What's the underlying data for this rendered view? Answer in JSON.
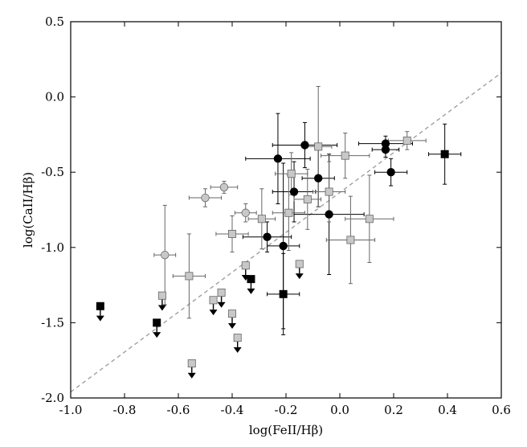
{
  "chart_data": {
    "type": "scatter",
    "title": "",
    "xlabel": "log(FeII/Hβ)",
    "ylabel": "log(CaII/Hβ)",
    "xlim": [
      -1.0,
      0.6
    ],
    "ylim": [
      -2.0,
      0.5
    ],
    "x_ticks": [
      -1.0,
      -0.8,
      -0.6,
      -0.4,
      -0.2,
      0.0,
      0.2,
      0.4,
      0.6
    ],
    "x_tick_labels": [
      "-1.0",
      "-0.8",
      "-0.6",
      "-0.4",
      "-0.2",
      "0.0",
      "0.2",
      "0.4",
      "0.6"
    ],
    "y_ticks": [
      -2.0,
      -1.5,
      -1.0,
      -0.5,
      0.0,
      0.5
    ],
    "y_tick_labels": [
      "-2.0",
      "-1.5",
      "-1.0",
      "-0.5",
      "0.0",
      "0.5"
    ],
    "grid": false,
    "legend": "none",
    "reference_line": {
      "style": "dashed",
      "color": "#a0a0a0",
      "x": [
        -1.0,
        0.6
      ],
      "y": [
        -1.96,
        0.16
      ]
    },
    "series": [
      {
        "marker": "circle",
        "color": "#000000",
        "edge": "#000000",
        "points": [
          {
            "x": -0.23,
            "y": -0.41,
            "xerr": 0.12,
            "yerr": 0.3
          },
          {
            "x": -0.13,
            "y": -0.32,
            "xerr": 0.12,
            "yerr": 0.15
          },
          {
            "x": -0.08,
            "y": -0.54,
            "xerr": 0.06,
            "yerr": 0.19
          },
          {
            "x": -0.17,
            "y": -0.63,
            "xerr": 0.08,
            "yerr": 0.2
          },
          {
            "x": 0.17,
            "y": -0.31,
            "xerr": 0.1,
            "yerr": 0.05
          },
          {
            "x": 0.17,
            "y": -0.35,
            "xerr": 0.05,
            "yerr": 0.05
          },
          {
            "x": 0.19,
            "y": -0.5,
            "xerr": 0.06,
            "yerr": 0.09
          },
          {
            "x": -0.27,
            "y": -0.93,
            "xerr": 0.09,
            "yerr": 0.1
          },
          {
            "x": -0.21,
            "y": -0.99,
            "xerr": 0.06,
            "yerr": 0.55
          },
          {
            "x": -0.04,
            "y": -0.78,
            "xerr": 0.13,
            "yerr": 0.4
          }
        ]
      },
      {
        "marker": "circle",
        "color": "#c8c8c8",
        "edge": "#666666",
        "points": [
          {
            "x": -0.5,
            "y": -0.67,
            "xerr": 0.06,
            "yerr": 0.06
          },
          {
            "x": -0.43,
            "y": -0.6,
            "xerr": 0.05,
            "yerr": 0.04
          },
          {
            "x": -0.35,
            "y": -0.77,
            "xerr": 0.04,
            "yerr": 0.06
          },
          {
            "x": -0.65,
            "y": -1.05,
            "xerr": 0.04,
            "yerr": 0.33
          }
        ]
      },
      {
        "marker": "square",
        "color": "#c8c8c8",
        "edge": "#666666",
        "points": [
          {
            "x": -0.18,
            "y": -0.51,
            "xerr": 0.06,
            "yerr": 0.14
          },
          {
            "x": -0.08,
            "y": -0.33,
            "xerr": 0.05,
            "yerr": 0.4
          },
          {
            "x": 0.02,
            "y": -0.39,
            "xerr": 0.09,
            "yerr": 0.15
          },
          {
            "x": 0.25,
            "y": -0.29,
            "xerr": 0.07,
            "yerr": 0.06
          },
          {
            "x": -0.29,
            "y": -0.81,
            "xerr": 0.05,
            "yerr": 0.2
          },
          {
            "x": -0.19,
            "y": -0.77,
            "xerr": 0.06,
            "yerr": 0.25
          },
          {
            "x": -0.12,
            "y": -0.68,
            "xerr": 0.05,
            "yerr": 0.2
          },
          {
            "x": -0.04,
            "y": -0.63,
            "xerr": 0.06,
            "yerr": 0.2
          },
          {
            "x": -0.4,
            "y": -0.91,
            "xerr": 0.06,
            "yerr": 0.12
          },
          {
            "x": 0.04,
            "y": -0.95,
            "xerr": 0.09,
            "yerr": 0.29
          },
          {
            "x": 0.11,
            "y": -0.81,
            "xerr": 0.09,
            "yerr": 0.29
          },
          {
            "x": -0.56,
            "y": -1.19,
            "xerr": 0.06,
            "yerr": 0.28
          }
        ]
      },
      {
        "marker": "square",
        "color": "#c8c8c8",
        "edge": "#666666",
        "upper_limit": true,
        "points": [
          {
            "x": -0.66,
            "y": -1.32
          },
          {
            "x": -0.47,
            "y": -1.35
          },
          {
            "x": -0.44,
            "y": -1.3
          },
          {
            "x": -0.4,
            "y": -1.44
          },
          {
            "x": -0.38,
            "y": -1.6
          },
          {
            "x": -0.35,
            "y": -1.12
          },
          {
            "x": -0.15,
            "y": -1.11
          },
          {
            "x": -0.55,
            "y": -1.77
          }
        ]
      },
      {
        "marker": "square",
        "color": "#000000",
        "edge": "#000000",
        "points": [
          {
            "x": 0.39,
            "y": -0.38,
            "xerr": 0.06,
            "yerr": 0.2
          },
          {
            "x": -0.21,
            "y": -1.31,
            "xerr": 0.06,
            "yerr": 0.27
          }
        ]
      },
      {
        "marker": "square",
        "color": "#000000",
        "edge": "#000000",
        "upper_limit": true,
        "points": [
          {
            "x": -0.89,
            "y": -1.39
          },
          {
            "x": -0.68,
            "y": -1.5
          },
          {
            "x": -0.33,
            "y": -1.21
          }
        ]
      }
    ]
  }
}
